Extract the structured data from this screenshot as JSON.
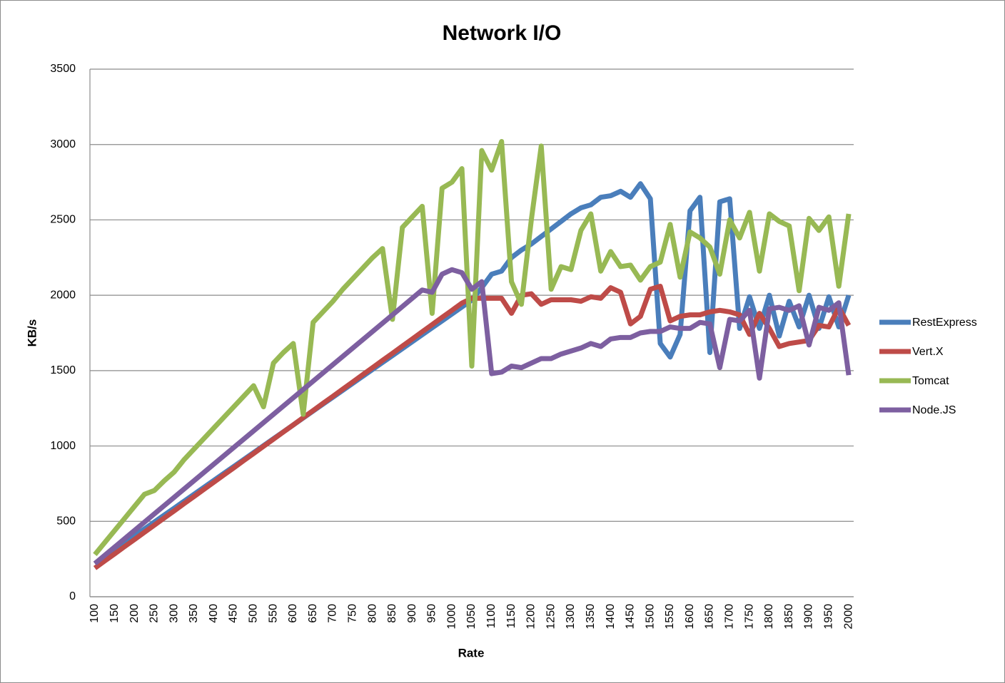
{
  "chart_data": {
    "type": "line",
    "title": "Network I/O",
    "x_label": "Rate",
    "y_label": "KB/s",
    "categories": [
      100,
      null,
      150,
      null,
      200,
      null,
      250,
      null,
      300,
      null,
      350,
      null,
      400,
      null,
      450,
      null,
      500,
      null,
      550,
      null,
      600,
      null,
      650,
      null,
      700,
      null,
      750,
      null,
      800,
      null,
      850,
      null,
      900,
      null,
      950,
      null,
      1000,
      null,
      1050,
      null,
      1100,
      null,
      1150,
      null,
      1200,
      null,
      1250,
      null,
      1300,
      null,
      1350,
      null,
      1400,
      null,
      1450,
      null,
      1500,
      null,
      1550,
      null,
      1600,
      null,
      1650,
      null,
      1700,
      null,
      1750,
      null,
      1800,
      null,
      1850,
      null,
      1900,
      null,
      1950,
      null,
      2000
    ],
    "series": [
      {
        "name": "RestExpress",
        "color": "#4a7ebb",
        "values": [
          220,
          266,
          312,
          358,
          404,
          450,
          496,
          542,
          588,
          634,
          680,
          726,
          772,
          818,
          864,
          910,
          956,
          1002,
          1048,
          1094,
          1140,
          1186,
          1232,
          1278,
          1324,
          1370,
          1416,
          1462,
          1508,
          1554,
          1600,
          1646,
          1692,
          1738,
          1784,
          1830,
          1876,
          1922,
          1968,
          2050,
          2140,
          2160,
          2250,
          2300,
          2340,
          2390,
          2440,
          2490,
          2540,
          2580,
          2600,
          2650,
          2660,
          2690,
          2650,
          2740,
          2640,
          1680,
          1590,
          1740,
          2560,
          2650,
          1620,
          2620,
          2640,
          1780,
          1990,
          1780,
          2000,
          1730,
          1960,
          1790,
          2000,
          1780,
          1990,
          1790,
          2000
        ]
      },
      {
        "name": "Vert.X",
        "color": "#be4b48",
        "values": [
          190,
          238,
          285,
          333,
          380,
          428,
          475,
          523,
          570,
          618,
          665,
          713,
          760,
          808,
          855,
          903,
          950,
          998,
          1045,
          1093,
          1140,
          1188,
          1235,
          1283,
          1330,
          1378,
          1425,
          1473,
          1520,
          1568,
          1615,
          1663,
          1710,
          1758,
          1805,
          1853,
          1900,
          1948,
          1980,
          1980,
          1980,
          1980,
          1880,
          2000,
          2010,
          1940,
          1970,
          1970,
          1970,
          1960,
          1990,
          1980,
          2050,
          2020,
          1810,
          1860,
          2040,
          2060,
          1830,
          1860,
          1870,
          1870,
          1890,
          1900,
          1890,
          1870,
          1740,
          1880,
          1780,
          1660,
          1680,
          1690,
          1700,
          1800,
          1790,
          1920,
          1800
        ]
      },
      {
        "name": "Tomcat",
        "color": "#98b954",
        "values": [
          280,
          360,
          440,
          520,
          600,
          680,
          705,
          770,
          828,
          910,
          980,
          1050,
          1120,
          1190,
          1260,
          1330,
          1400,
          1260,
          1550,
          1620,
          1680,
          1210,
          1820,
          1890,
          1960,
          2040,
          2110,
          2180,
          2250,
          2310,
          1840,
          2450,
          2520,
          2590,
          1880,
          2710,
          2750,
          2840,
          1530,
          2960,
          2830,
          3020,
          2090,
          1940,
          2500,
          2990,
          2040,
          2190,
          2170,
          2430,
          2540,
          2160,
          2290,
          2190,
          2200,
          2100,
          2190,
          2220,
          2470,
          2120,
          2420,
          2380,
          2320,
          2140,
          2500,
          2380,
          2550,
          2160,
          2540,
          2490,
          2460,
          2030,
          2510,
          2430,
          2520,
          2060,
          2540
        ]
      },
      {
        "name": "Node.JS",
        "color": "#7d5fa0",
        "values": [
          220,
          275,
          330,
          385,
          440,
          495,
          550,
          605,
          660,
          715,
          770,
          825,
          880,
          935,
          990,
          1045,
          1100,
          1155,
          1210,
          1265,
          1320,
          1375,
          1430,
          1485,
          1540,
          1595,
          1650,
          1705,
          1760,
          1815,
          1870,
          1925,
          1980,
          2035,
          2020,
          2140,
          2170,
          2150,
          2040,
          2090,
          1480,
          1490,
          1530,
          1520,
          1550,
          1580,
          1580,
          1610,
          1630,
          1650,
          1680,
          1660,
          1710,
          1720,
          1720,
          1750,
          1760,
          1760,
          1790,
          1780,
          1780,
          1820,
          1810,
          1520,
          1840,
          1830,
          1900,
          1450,
          1910,
          1920,
          1900,
          1930,
          1670,
          1920,
          1900,
          1950,
          1470
        ]
      }
    ],
    "ylim": [
      0,
      3500
    ],
    "yticks": [
      0,
      500,
      1000,
      1500,
      2000,
      2500,
      3000,
      3500
    ],
    "grid": true,
    "legend": "right"
  }
}
